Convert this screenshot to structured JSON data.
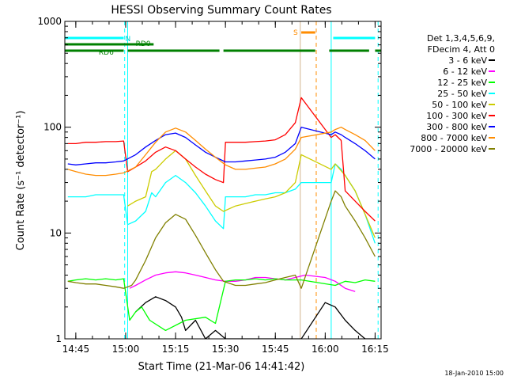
{
  "chart_data": {
    "type": "line",
    "title": "HESSI Observing Summary Count Rates",
    "xlabel": "Start Time (21-Mar-06 14:41:42)",
    "ylabel": "Count Rate (s⁻¹ detector⁻¹)",
    "y_scale": "log",
    "ylim": [
      1,
      1000
    ],
    "xlim": [
      14.695,
      16.28
    ],
    "x_ticks": [
      "14:45",
      "15:00",
      "15:15",
      "15:30",
      "15:45",
      "16:00",
      "16:15"
    ],
    "y_ticks": [
      "1",
      "10",
      "100",
      "1000"
    ],
    "grid": false,
    "legend_position": "right",
    "legend_header": [
      "Det 1,3,4,5,6,9,",
      "FDecim 4, Att 0"
    ],
    "timestamp": "18-Jan-2010 15:00",
    "flags": [
      {
        "label": "N",
        "color": "#00ffff",
        "segments": [
          [
            14.695,
            14.99
          ],
          [
            16.04,
            16.25
          ]
        ]
      },
      {
        "label": "S",
        "color": "#ff8c00",
        "segments": [
          [
            15.88,
            15.95
          ]
        ]
      },
      {
        "label": "RD0",
        "color": "#008000",
        "segments": [
          [
            14.695,
            15.14
          ]
        ]
      },
      {
        "label": "RD6",
        "color": "#008000",
        "segments": [
          [
            14.695,
            14.99
          ],
          [
            15.01,
            15.47
          ],
          [
            15.49,
            15.95
          ],
          [
            16.02,
            16.22
          ],
          [
            16.25,
            16.28
          ]
        ]
      }
    ],
    "vlines": [
      {
        "x": 14.995,
        "color": "#00ffff"
      },
      {
        "x": 15.955,
        "color": "#ff8c00"
      },
      {
        "x": 16.265,
        "color": "#00ffff"
      }
    ],
    "solid_vlines": [
      {
        "x": 15.01,
        "color": "#00ffff"
      },
      {
        "x": 15.875,
        "color": "#d2b48c"
      },
      {
        "x": 16.03,
        "color": "#00ffff"
      }
    ],
    "series": [
      {
        "name": "3 - 6 keV",
        "color": "#000000",
        "x": [
          15.05,
          15.1,
          15.15,
          15.2,
          15.25,
          15.28,
          15.3,
          15.35,
          15.4,
          15.45,
          15.5,
          15.55,
          15.6,
          15.65,
          15.7,
          15.75,
          15.8,
          15.85,
          15.88,
          16.0,
          16.05,
          16.1,
          16.15,
          16.2,
          16.25
        ],
        "y": [
          1.8,
          2.2,
          2.5,
          2.3,
          2.0,
          1.6,
          1.2,
          1.5,
          1.0,
          1.2,
          1.0,
          1.0,
          1.0,
          1.0,
          1.0,
          1.0,
          1.0,
          1.0,
          1.0,
          2.2,
          2.0,
          1.5,
          1.2,
          1.0,
          1.0
        ]
      },
      {
        "name": "6 - 12 keV",
        "color": "#ff00ff",
        "x": [
          15.02,
          15.05,
          15.1,
          15.15,
          15.2,
          15.25,
          15.3,
          15.35,
          15.4,
          15.45,
          15.5,
          15.55,
          15.6,
          15.65,
          15.7,
          15.75,
          15.8,
          15.85,
          15.9,
          16.0,
          16.05,
          16.1,
          16.15
        ],
        "y": [
          3.0,
          3.2,
          3.6,
          4.0,
          4.2,
          4.3,
          4.2,
          4.0,
          3.8,
          3.6,
          3.5,
          3.5,
          3.6,
          3.8,
          3.8,
          3.7,
          3.6,
          3.8,
          4.0,
          3.8,
          3.5,
          3.0,
          2.8
        ]
      },
      {
        "name": "12 - 25 keV",
        "color": "#00ff00",
        "x": [
          14.71,
          14.75,
          14.8,
          14.85,
          14.9,
          14.95,
          14.99,
          15.02,
          15.05,
          15.08,
          15.12,
          15.2,
          15.3,
          15.4,
          15.45,
          15.5,
          15.55,
          15.6,
          15.65,
          15.7,
          15.75,
          15.8,
          15.85,
          15.88,
          16.05,
          16.1,
          16.15,
          16.2,
          16.25
        ],
        "y": [
          3.5,
          3.6,
          3.7,
          3.6,
          3.7,
          3.6,
          3.7,
          1.5,
          1.8,
          2.0,
          1.5,
          1.2,
          1.5,
          1.6,
          1.4,
          3.5,
          3.6,
          3.6,
          3.7,
          3.6,
          3.7,
          3.6,
          3.6,
          3.6,
          3.2,
          3.5,
          3.4,
          3.6,
          3.5
        ]
      },
      {
        "name": "25 - 50 keV",
        "color": "#00ffff",
        "x": [
          14.71,
          14.75,
          14.8,
          14.85,
          14.9,
          14.95,
          14.99,
          15.01,
          15.05,
          15.1,
          15.13,
          15.15,
          15.2,
          15.25,
          15.3,
          15.35,
          15.4,
          15.45,
          15.49,
          15.5,
          15.55,
          15.6,
          15.65,
          15.7,
          15.75,
          15.8,
          15.85,
          15.88,
          16.03,
          16.05,
          16.08,
          16.1,
          16.15,
          16.2,
          16.25
        ],
        "y": [
          22,
          22,
          22,
          23,
          23,
          23,
          23,
          12,
          13,
          16,
          24,
          22,
          30,
          35,
          30,
          24,
          18,
          13,
          11,
          22,
          22,
          22,
          23,
          23,
          24,
          24,
          26,
          30,
          30,
          45,
          40,
          35,
          25,
          15,
          8
        ]
      },
      {
        "name": "50 - 100 keV",
        "color": "#cccc00",
        "x": [
          15.01,
          15.05,
          15.1,
          15.13,
          15.15,
          15.2,
          15.25,
          15.3,
          15.35,
          15.4,
          15.45,
          15.49,
          15.55,
          15.6,
          15.65,
          15.7,
          15.75,
          15.8,
          15.85,
          15.88,
          16.03,
          16.05,
          16.1,
          16.15,
          16.2,
          16.25
        ],
        "y": [
          18,
          20,
          22,
          38,
          40,
          50,
          60,
          50,
          35,
          25,
          18,
          16,
          18,
          19,
          20,
          21,
          22,
          24,
          30,
          55,
          40,
          45,
          35,
          25,
          15,
          9
        ]
      },
      {
        "name": "100 - 300 keV",
        "color": "#ff0000",
        "x": [
          14.71,
          14.75,
          14.8,
          14.85,
          14.9,
          14.95,
          14.99,
          15.01,
          15.05,
          15.1,
          15.15,
          15.2,
          15.25,
          15.3,
          15.35,
          15.4,
          15.45,
          15.49,
          15.5,
          15.55,
          15.6,
          15.65,
          15.7,
          15.75,
          15.8,
          15.85,
          15.88,
          16.03,
          16.05,
          16.08,
          16.1,
          16.15,
          16.2,
          16.25
        ],
        "y": [
          70,
          70,
          72,
          72,
          73,
          73,
          74,
          38,
          42,
          48,
          58,
          65,
          60,
          50,
          42,
          36,
          32,
          30,
          72,
          72,
          72,
          73,
          74,
          76,
          85,
          110,
          190,
          80,
          85,
          75,
          25,
          20,
          16,
          13
        ]
      },
      {
        "name": "300 - 800 keV",
        "color": "#0000ff",
        "x": [
          14.71,
          14.75,
          14.8,
          14.85,
          14.9,
          14.95,
          14.99,
          15.05,
          15.1,
          15.15,
          15.2,
          15.25,
          15.3,
          15.35,
          15.4,
          15.45,
          15.5,
          15.55,
          15.6,
          15.65,
          15.7,
          15.75,
          15.8,
          15.85,
          15.88,
          16.03,
          16.05,
          16.08,
          16.1,
          16.15,
          16.2,
          16.25
        ],
        "y": [
          45,
          44,
          45,
          46,
          46,
          47,
          48,
          55,
          65,
          75,
          85,
          88,
          80,
          68,
          58,
          52,
          47,
          47,
          48,
          49,
          50,
          52,
          58,
          70,
          100,
          85,
          90,
          85,
          80,
          70,
          60,
          50
        ]
      },
      {
        "name": "800 - 7000 keV",
        "color": "#ff8c00",
        "x": [
          14.71,
          14.75,
          14.8,
          14.85,
          14.9,
          14.95,
          14.99,
          15.05,
          15.1,
          15.15,
          15.2,
          15.25,
          15.3,
          15.35,
          15.4,
          15.45,
          15.5,
          15.55,
          15.6,
          15.65,
          15.7,
          15.75,
          15.8,
          15.85,
          15.88,
          16.03,
          16.05,
          16.08,
          16.1,
          16.15,
          16.2,
          16.25
        ],
        "y": [
          40,
          38,
          36,
          35,
          35,
          36,
          37,
          42,
          55,
          72,
          90,
          98,
          90,
          75,
          62,
          52,
          44,
          40,
          40,
          41,
          42,
          45,
          50,
          62,
          80,
          90,
          95,
          100,
          95,
          85,
          75,
          60
        ]
      },
      {
        "name": "7000 - 20000 keV",
        "color": "#808000",
        "x": [
          14.71,
          14.75,
          14.8,
          14.85,
          14.9,
          14.95,
          14.99,
          15.03,
          15.05,
          15.1,
          15.15,
          15.2,
          15.25,
          15.3,
          15.35,
          15.4,
          15.45,
          15.49,
          15.55,
          15.6,
          15.65,
          15.7,
          15.75,
          15.8,
          15.85,
          15.88,
          16.03,
          16.05,
          16.08,
          16.1,
          16.15,
          16.2,
          16.25
        ],
        "y": [
          3.5,
          3.4,
          3.3,
          3.3,
          3.2,
          3.1,
          3.0,
          3.2,
          3.6,
          5.5,
          9.0,
          12.5,
          15.0,
          13.5,
          9.5,
          6.5,
          4.5,
          3.5,
          3.2,
          3.2,
          3.3,
          3.4,
          3.6,
          3.8,
          4.0,
          3.0,
          20,
          25,
          22,
          18,
          13,
          9,
          6
        ]
      }
    ]
  }
}
